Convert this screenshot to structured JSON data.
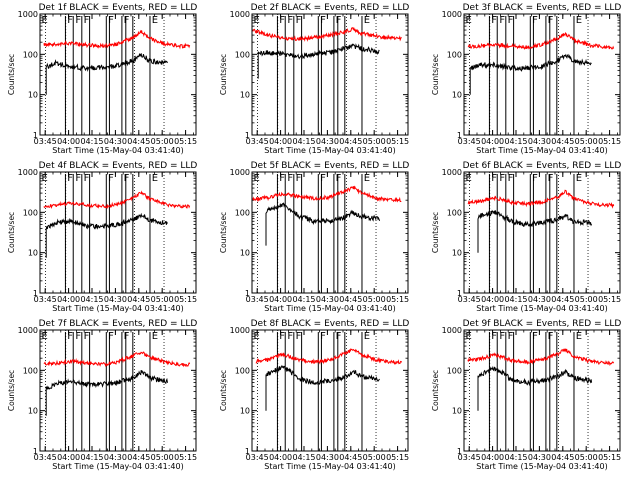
{
  "chart_data": {
    "type": "line",
    "shared": {
      "xlabel": "Start Time (15-May-04 03:41:40)",
      "ylabel": "Counts/sec",
      "xtick_labels": [
        "03:45",
        "04:00",
        "04:15",
        "04:30",
        "04:45",
        "05:00",
        "05:15"
      ],
      "xtick_minutes": [
        3.33,
        18.33,
        33.33,
        48.33,
        63.33,
        78.33,
        93.33
      ],
      "xlim_minutes": [
        0,
        100
      ],
      "ytick_labels": [
        "1",
        "10",
        "100",
        "1000"
      ],
      "ylim": [
        1,
        1000
      ],
      "yscale": "log",
      "series_colors": {
        "events": "#000000",
        "lld": "#ff0000"
      },
      "gap_lines_minutes": [
        16.3,
        21.3,
        26.8,
        31.8,
        42.5,
        44.5,
        52.5,
        55.0,
        59.5,
        70.5
      ],
      "dotted_lines_minutes": [
        3.5,
        16.5,
        60.5,
        79.5
      ],
      "segment_markers": [
        {
          "label": "E",
          "minute": 0.3
        },
        {
          "label": "F",
          "minute": 16.8
        },
        {
          "label": "F",
          "minute": 22.0
        },
        {
          "label": "F",
          "minute": 27.3
        },
        {
          "label": "F",
          "minute": 43.0
        },
        {
          "label": "F",
          "minute": 53.0
        },
        {
          "label": "E",
          "minute": 71.0
        }
      ],
      "series_points_minutes": [
        0,
        10,
        20,
        30,
        40,
        50,
        60,
        65,
        70,
        80,
        90
      ]
    },
    "panels": [
      {
        "title": "Det 1f BLACK = Events, RED = LLD",
        "events": [
          40,
          60,
          50,
          45,
          48,
          52,
          70,
          100,
          70,
          60,
          50
        ],
        "lld": [
          170,
          180,
          190,
          170,
          160,
          180,
          260,
          360,
          250,
          180,
          160
        ],
        "events_start_minute": 4.0,
        "events_end_minute": 82.0,
        "lld_start_minute": 2.5,
        "lld_end_minute": 96.0
      },
      {
        "title": "Det 2f BLACK = Events, RED = LLD",
        "events": [
          100,
          110,
          100,
          90,
          100,
          110,
          140,
          160,
          140,
          120,
          100
        ],
        "lld": [
          400,
          300,
          250,
          240,
          260,
          300,
          370,
          420,
          330,
          280,
          250
        ],
        "events_start_minute": 4.0,
        "events_end_minute": 82.0,
        "lld_start_minute": 0.5,
        "lld_end_minute": 96.0
      },
      {
        "title": "Det 3f BLACK = Events, RED = LLD",
        "events": [
          40,
          55,
          55,
          45,
          45,
          50,
          70,
          95,
          70,
          60,
          50
        ],
        "lld": [
          150,
          160,
          170,
          160,
          150,
          170,
          250,
          320,
          230,
          170,
          150
        ],
        "events_start_minute": 4.0,
        "events_end_minute": 82.0,
        "lld_start_minute": 2.5,
        "lld_end_minute": 96.0
      },
      {
        "title": "Det 4f BLACK = Events, RED = LLD",
        "events": [
          30,
          55,
          60,
          45,
          45,
          50,
          65,
          85,
          65,
          55,
          45
        ],
        "lld": [
          140,
          150,
          170,
          150,
          140,
          160,
          230,
          300,
          220,
          160,
          140
        ],
        "events_start_minute": 4.0,
        "events_end_minute": 82.0,
        "lld_start_minute": 2.5,
        "lld_end_minute": 96.0
      },
      {
        "title": "Det 5f BLACK = Events, RED = LLD",
        "events": [
          60,
          110,
          150,
          80,
          60,
          60,
          75,
          100,
          80,
          70,
          60
        ],
        "lld": [
          210,
          230,
          290,
          250,
          220,
          240,
          330,
          420,
          300,
          220,
          200
        ],
        "events_start_minute": 9.0,
        "events_end_minute": 82.0,
        "lld_start_minute": 0.5,
        "lld_end_minute": 96.0
      },
      {
        "title": "Det 6f BLACK = Events, RED = LLD",
        "events": [
          40,
          80,
          100,
          60,
          50,
          55,
          65,
          80,
          60,
          55,
          45
        ],
        "lld": [
          170,
          190,
          230,
          180,
          160,
          180,
          240,
          320,
          220,
          170,
          150
        ],
        "events_start_minute": 9.0,
        "events_end_minute": 82.0,
        "lld_start_minute": 2.5,
        "lld_end_minute": 96.0
      },
      {
        "title": "Det 7f BLACK = Events, RED = LLD",
        "events": [
          30,
          45,
          55,
          45,
          45,
          50,
          65,
          90,
          65,
          55,
          45
        ],
        "lld": [
          140,
          150,
          170,
          150,
          140,
          160,
          230,
          290,
          210,
          160,
          140
        ],
        "events_start_minute": 4.0,
        "events_end_minute": 82.0,
        "lld_start_minute": 2.5,
        "lld_end_minute": 96.0
      },
      {
        "title": "Det 8f BLACK = Events, RED = LLD",
        "events": [
          40,
          80,
          120,
          60,
          50,
          55,
          70,
          95,
          70,
          60,
          50
        ],
        "lld": [
          160,
          180,
          250,
          180,
          160,
          180,
          260,
          340,
          240,
          180,
          160
        ],
        "events_start_minute": 9.0,
        "events_end_minute": 82.0,
        "lld_start_minute": 2.5,
        "lld_end_minute": 96.0
      },
      {
        "title": "Det 9f BLACK = Events, RED = LLD",
        "events": [
          40,
          75,
          110,
          60,
          50,
          55,
          70,
          90,
          65,
          55,
          45
        ],
        "lld": [
          170,
          190,
          240,
          180,
          160,
          180,
          250,
          330,
          230,
          170,
          150
        ],
        "events_start_minute": 9.0,
        "events_end_minute": 82.0,
        "lld_start_minute": 2.5,
        "lld_end_minute": 96.0
      }
    ]
  }
}
